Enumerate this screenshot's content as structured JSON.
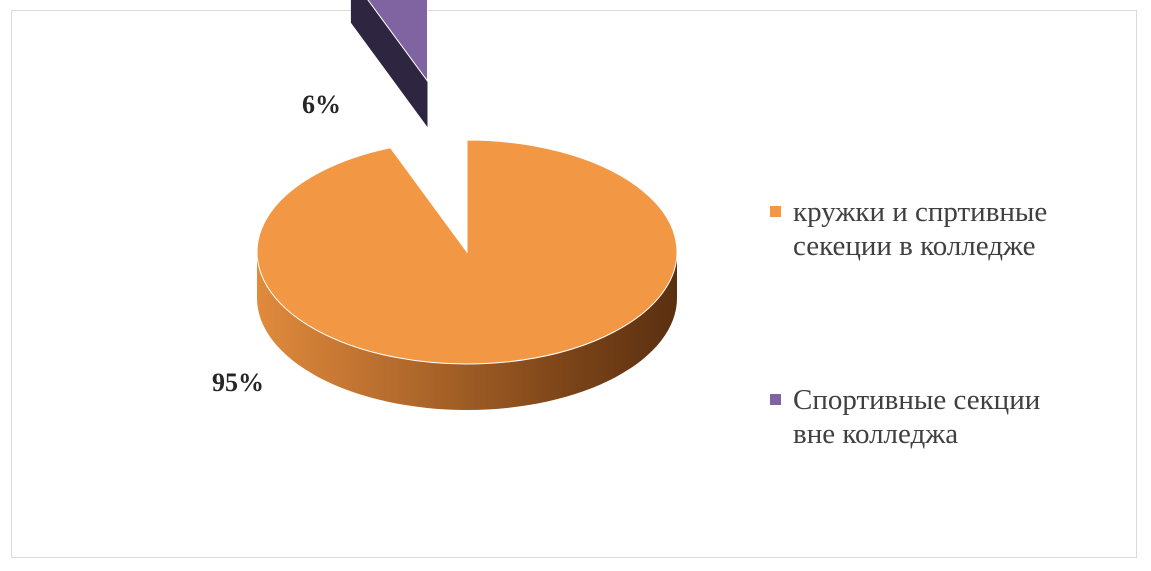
{
  "chart_data": {
    "type": "pie",
    "style": "3d-exploded",
    "slices": [
      {
        "label": "кружки и спртивные\nсекеции в колледже",
        "value": 95,
        "display": "95%",
        "color": "#F29845",
        "side_dark": "#6B3A14",
        "side_light": "#C97A35"
      },
      {
        "label": "Спортивные секции\nвне колледжа",
        "value": 6,
        "display": "6%",
        "color": "#8064A2",
        "side_dark": "#2E2640",
        "side_light": "#4A3D66"
      }
    ],
    "legend_position": "right"
  }
}
